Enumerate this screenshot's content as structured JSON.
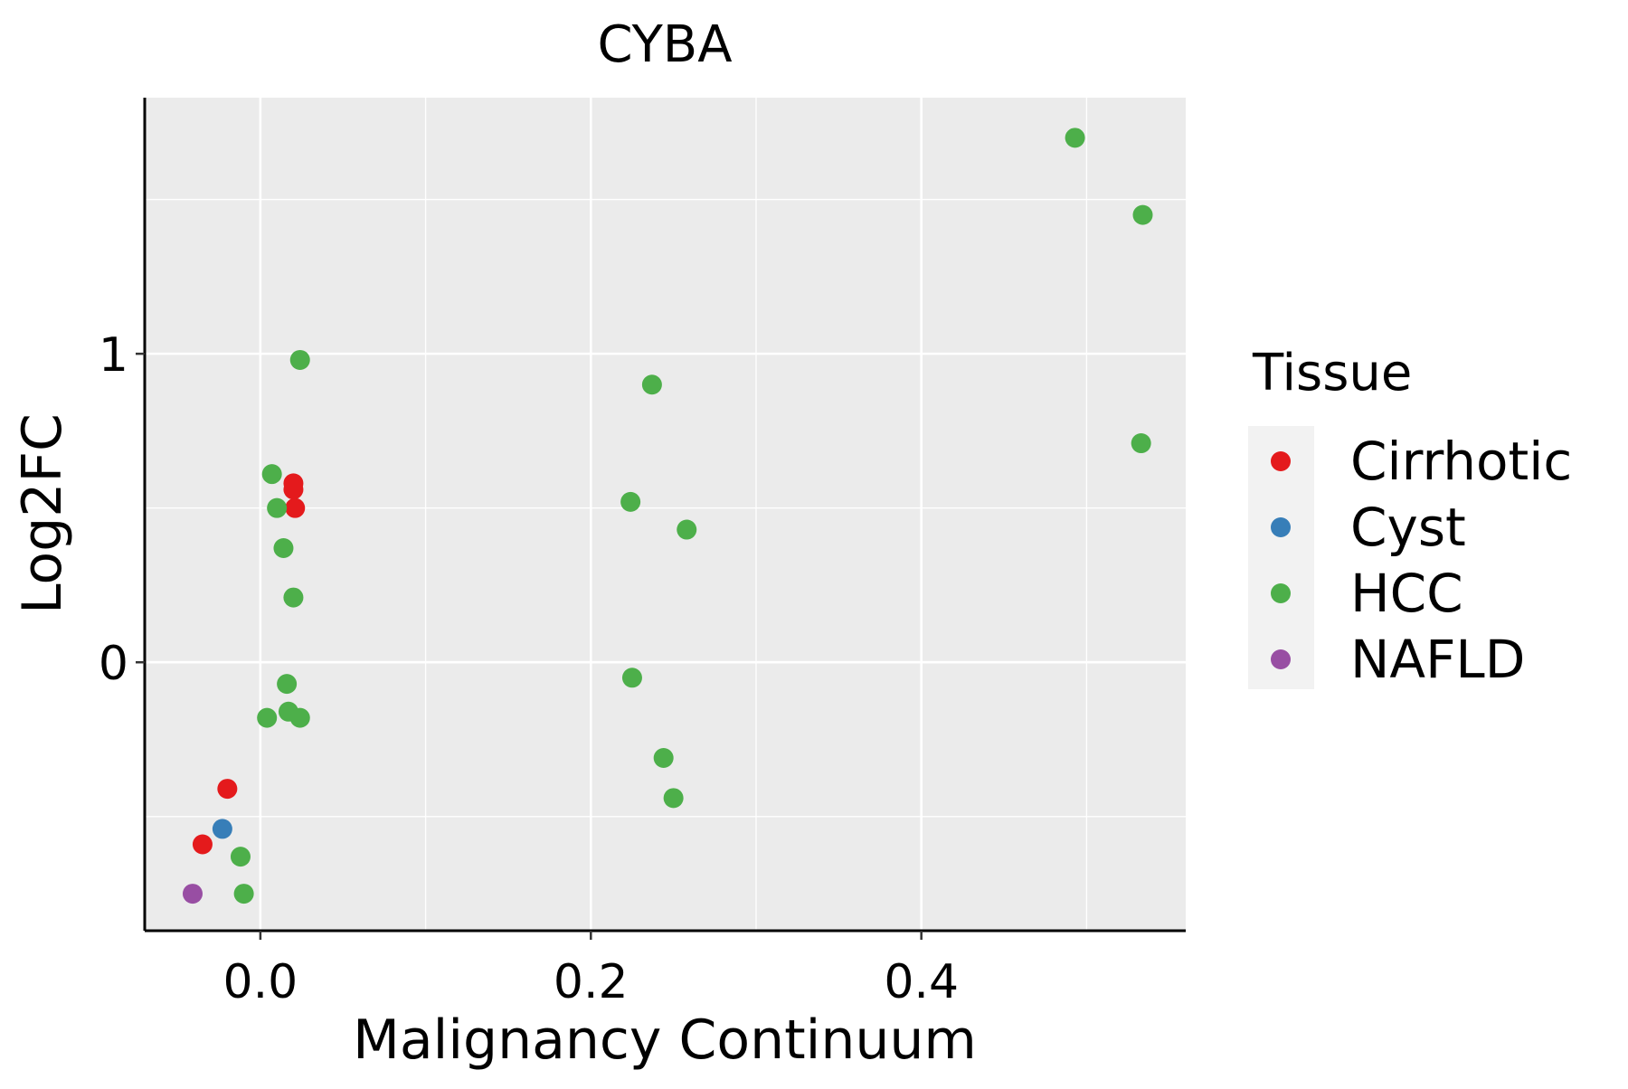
{
  "chart_data": {
    "type": "scatter",
    "title": "CYBA",
    "xlabel": "Malignancy Continuum",
    "ylabel": "Log2FC",
    "xlim": [
      -0.07,
      0.56
    ],
    "ylim": [
      -0.87,
      1.83
    ],
    "x_ticks": [
      0.0,
      0.2,
      0.4
    ],
    "x_tick_labels": [
      "0.0",
      "0.2",
      "0.4"
    ],
    "y_ticks": [
      0,
      1
    ],
    "y_tick_labels": [
      "0",
      "1"
    ],
    "grid": true,
    "legend": {
      "title": "Tissue",
      "position": "right",
      "entries": [
        "Cirrhotic",
        "Cyst",
        "HCC",
        "NAFLD"
      ]
    },
    "colors": {
      "Cirrhotic": "#e41a1c",
      "Cyst": "#377eb8",
      "HCC": "#4daf4a",
      "NAFLD": "#984ea3"
    },
    "series": [
      {
        "name": "Cirrhotic",
        "points": [
          {
            "x": 0.02,
            "y": 0.58
          },
          {
            "x": 0.02,
            "y": 0.56
          },
          {
            "x": 0.021,
            "y": 0.5
          },
          {
            "x": -0.02,
            "y": -0.41
          },
          {
            "x": -0.035,
            "y": -0.59
          }
        ]
      },
      {
        "name": "Cyst",
        "points": [
          {
            "x": -0.023,
            "y": -0.54
          }
        ]
      },
      {
        "name": "HCC",
        "points": [
          {
            "x": 0.493,
            "y": 1.7
          },
          {
            "x": 0.534,
            "y": 1.45
          },
          {
            "x": 0.533,
            "y": 0.71
          },
          {
            "x": 0.024,
            "y": 0.98
          },
          {
            "x": 0.237,
            "y": 0.9
          },
          {
            "x": 0.224,
            "y": 0.52
          },
          {
            "x": 0.258,
            "y": 0.43
          },
          {
            "x": 0.007,
            "y": 0.61
          },
          {
            "x": 0.01,
            "y": 0.5
          },
          {
            "x": 0.014,
            "y": 0.37
          },
          {
            "x": 0.02,
            "y": 0.21
          },
          {
            "x": 0.225,
            "y": -0.05
          },
          {
            "x": 0.016,
            "y": -0.07
          },
          {
            "x": 0.004,
            "y": -0.18
          },
          {
            "x": 0.017,
            "y": -0.16
          },
          {
            "x": 0.024,
            "y": -0.18
          },
          {
            "x": 0.244,
            "y": -0.31
          },
          {
            "x": 0.25,
            "y": -0.44
          },
          {
            "x": -0.012,
            "y": -0.63
          },
          {
            "x": -0.01,
            "y": -0.75
          }
        ]
      },
      {
        "name": "NAFLD",
        "points": [
          {
            "x": -0.041,
            "y": -0.75
          }
        ]
      }
    ]
  }
}
